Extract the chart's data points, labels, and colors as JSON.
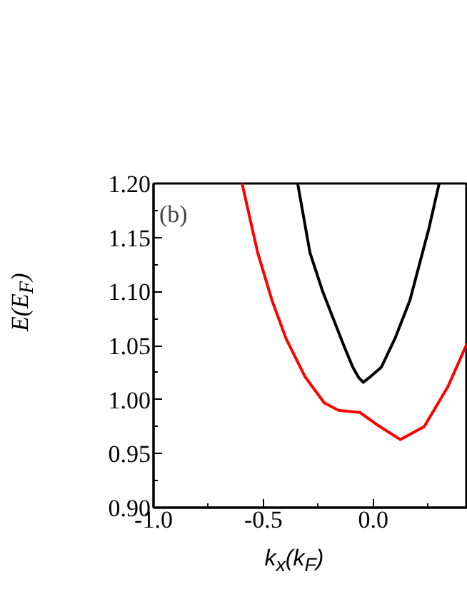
{
  "chart_data": {
    "type": "line",
    "xlabel": "k$_{x}$(k$_{F}$)",
    "ylabel": "E(E$_{F}$)",
    "annotations": [
      "(b)"
    ],
    "xlim": [
      -1.0,
      0.43
    ],
    "xticks": [
      {
        "value": -1.0,
        "label": "-1.0"
      },
      {
        "value": -0.5,
        "label": "-0.5"
      },
      {
        "value": 0.0,
        "label": "0.0"
      }
    ],
    "ylim": [
      0.9,
      1.2
    ],
    "yticks": [
      {
        "value": 0.9,
        "label": "0.90"
      },
      0.95,
      {
        "value": 1.0,
        "label": "1.00"
      },
      1.05,
      {
        "value": 1.1,
        "label": "1.10"
      },
      1.15,
      {
        "value": 1.2,
        "label": "1.20"
      }
    ],
    "grid": false,
    "marker": "none",
    "line_style": "solid",
    "series": [
      {
        "color": "#000000",
        "x": [
          -0.344,
          -0.288,
          -0.23,
          -0.18,
          -0.13,
          -0.093,
          -0.065,
          -0.045,
          -0.02,
          0.037,
          0.1,
          0.167,
          0.253,
          0.3
        ],
        "values": [
          1.2,
          1.136,
          1.1,
          1.074,
          1.048,
          1.03,
          1.02,
          1.016,
          1.02,
          1.03,
          1.057,
          1.092,
          1.158,
          1.2
        ]
      },
      {
        "color": "#ff0000",
        "x": [
          -0.597,
          -0.526,
          -0.461,
          -0.396,
          -0.31,
          -0.223,
          -0.158,
          -0.06,
          0.015,
          0.123,
          0.232,
          0.34,
          0.427
        ],
        "values": [
          1.2,
          1.136,
          1.092,
          1.056,
          1.021,
          0.997,
          0.99,
          0.988,
          0.977,
          0.963,
          0.975,
          1.012,
          1.052
        ]
      }
    ]
  }
}
